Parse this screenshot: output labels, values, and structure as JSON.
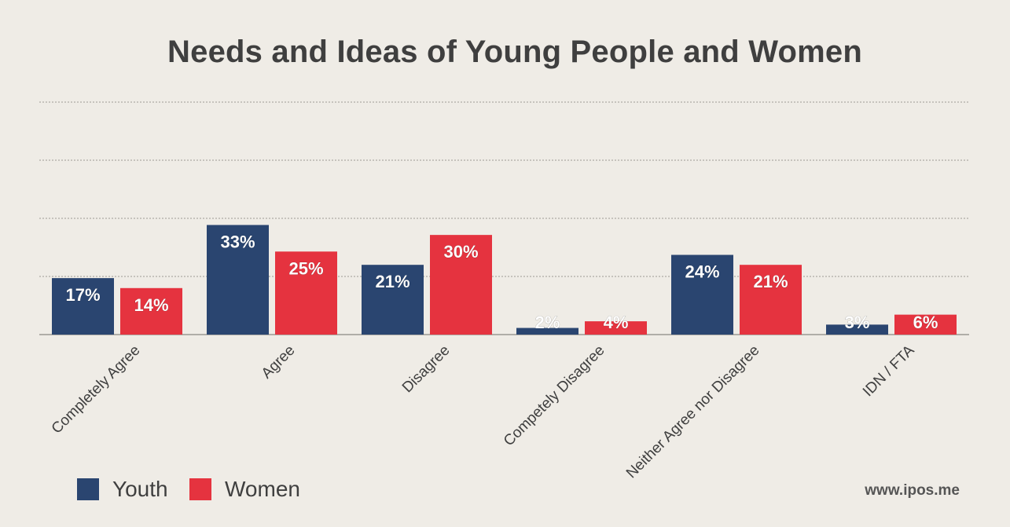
{
  "chart_data": {
    "type": "bar",
    "title": "Needs and Ideas of Young People and Women",
    "categories": [
      "Completely Agree",
      "Agree",
      "Disagree",
      "Competely Disagree",
      "Neither Agree nor Disagree",
      "IDN / FTA"
    ],
    "series": [
      {
        "name": "Youth",
        "values": [
          17,
          33,
          21,
          2,
          24,
          3
        ],
        "labels": [
          "17%",
          "33%",
          "21%",
          "2%",
          "24%",
          "3%"
        ],
        "color": "#2a4570"
      },
      {
        "name": "Women",
        "values": [
          14,
          25,
          30,
          4,
          21,
          6
        ],
        "labels": [
          "14%",
          "25%",
          "30%",
          "4%",
          "21%",
          "6%"
        ],
        "color": "#e5333f"
      }
    ],
    "ylim": [
      0,
      70
    ],
    "grid": true,
    "legend": "bottom-left",
    "xlabel": "",
    "ylabel": ""
  },
  "source": "www.ipos.me"
}
